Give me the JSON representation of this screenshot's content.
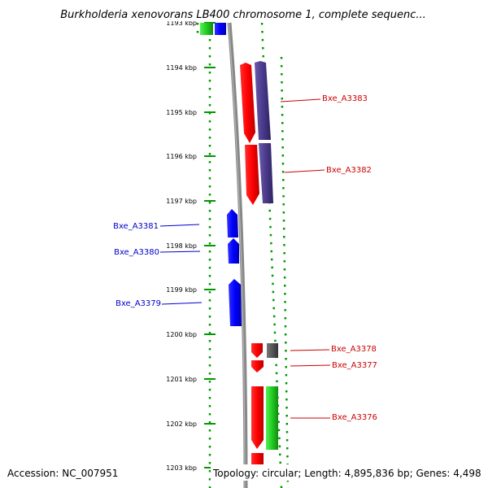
{
  "title": "Burkholderia xenovorans LB400 chromosome 1, complete sequenc...",
  "footer": {
    "accession": "Accession: NC_007951",
    "topology": "Topology: circular; Length: 4,895,836 bp; Genes: 4,498"
  },
  "ruler": {
    "top_clipped_label": "1193 kbp",
    "ticks": [
      "1194 kbp",
      "1195 kbp",
      "1196 kbp",
      "1197 kbp",
      "1198 kbp",
      "1199 kbp",
      "1200 kbp",
      "1201 kbp",
      "1202 kbp",
      "1203 kbp"
    ]
  },
  "colors": {
    "red": "#ff0000",
    "blue": "#0000ff",
    "green": "#22cc22",
    "purple": "#4b3a8c",
    "grey": "#555555",
    "label_red": "#cc0000",
    "label_blue": "#0000cc",
    "track_dots": "#009900",
    "backbone": "#888888"
  },
  "gene_labels": [
    {
      "id": "Bxe_A3383",
      "text": "Bxe_A3383",
      "color": "red"
    },
    {
      "id": "Bxe_A3382",
      "text": "Bxe_A3382",
      "color": "red"
    },
    {
      "id": "Bxe_A3381",
      "text": "Bxe_A3381",
      "color": "blue"
    },
    {
      "id": "Bxe_A3380",
      "text": "Bxe_A3380",
      "color": "blue"
    },
    {
      "id": "Bxe_A3379",
      "text": "Bxe_A3379",
      "color": "blue"
    },
    {
      "id": "Bxe_A3378",
      "text": "Bxe_A3378",
      "color": "red"
    },
    {
      "id": "Bxe_A3377",
      "text": "Bxe_A3377",
      "color": "red"
    },
    {
      "id": "Bxe_A3376",
      "text": "Bxe_A3376",
      "color": "red"
    }
  ]
}
